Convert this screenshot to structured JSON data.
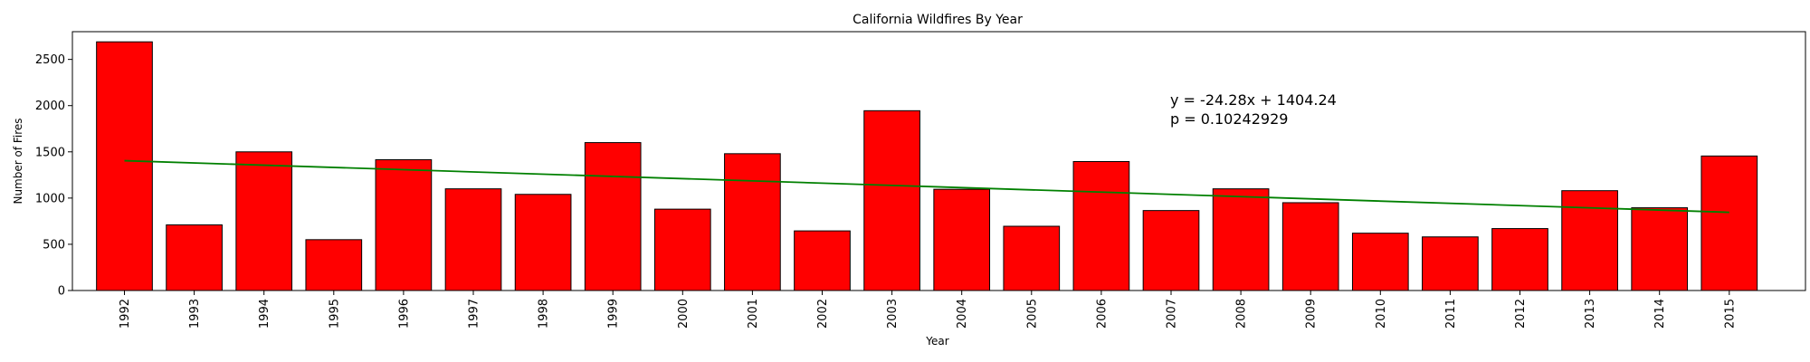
{
  "chart_data": {
    "type": "bar",
    "title": "California Wildfires By Year",
    "xlabel": "Year",
    "ylabel": "Number of Fires",
    "categories": [
      "1992",
      "1993",
      "1994",
      "1995",
      "1996",
      "1997",
      "1998",
      "1999",
      "2000",
      "2001",
      "2002",
      "2003",
      "2004",
      "2005",
      "2006",
      "2007",
      "2008",
      "2009",
      "2010",
      "2011",
      "2012",
      "2013",
      "2014",
      "2015"
    ],
    "values": [
      2690,
      710,
      1500,
      550,
      1415,
      1100,
      1040,
      1600,
      880,
      1480,
      645,
      1945,
      1095,
      695,
      1395,
      865,
      1100,
      950,
      620,
      580,
      670,
      1080,
      895,
      1455
    ],
    "ylim": [
      0,
      2800
    ],
    "yticks": [
      0,
      500,
      1000,
      1500,
      2000,
      2500
    ],
    "bar_color": "#ff0000",
    "trendline": {
      "slope": -24.28,
      "intercept": 1404.24,
      "color": "#008000"
    },
    "annotations": [
      {
        "text": "y = -24.28x + 1404.24",
        "color": "#008000"
      },
      {
        "text": "p = 0.10242929",
        "color": "#0000ff"
      }
    ],
    "grid": false,
    "legend": "none"
  }
}
